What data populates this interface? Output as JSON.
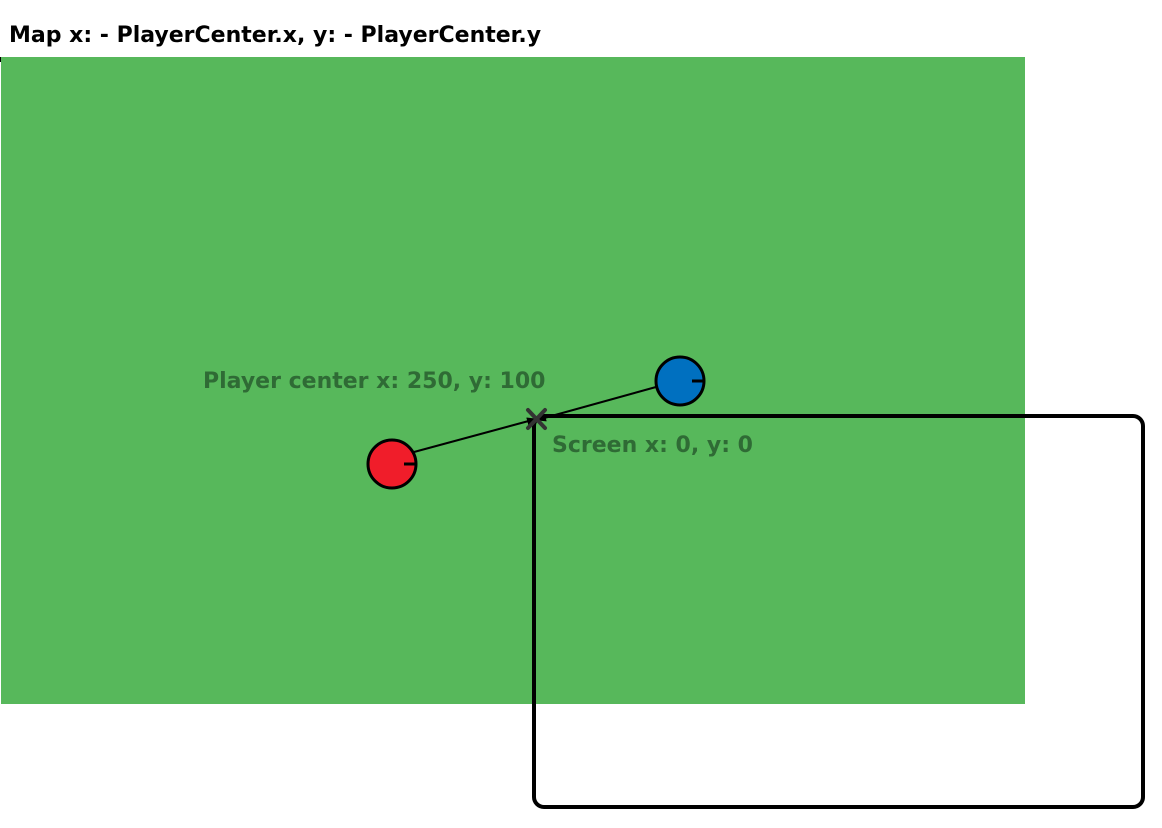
{
  "title": "Map x: - PlayerCenter.x, y: - PlayerCenter.y",
  "labels": {
    "player_center": "Player center x: 250, y: 100",
    "screen_origin": "Screen x: 0, y: 0"
  },
  "colors": {
    "map_fill": "#57b85b",
    "label_text": "#2f6b35",
    "red_player": "#f01d2a",
    "blue_player": "#0070c0",
    "outline": "#000000",
    "background": "#ffffff"
  },
  "icons": {
    "center_marker": "x-mark-icon"
  }
}
